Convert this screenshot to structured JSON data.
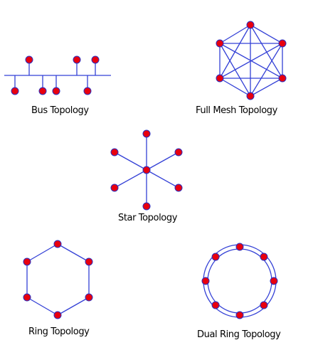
{
  "colors": {
    "line": "#3340d6",
    "node_fill": "#e8000e",
    "node_stroke": "#2b2fc0",
    "text": "#000000"
  },
  "labels": {
    "bus": "Bus Topology",
    "mesh": "Full Mesh Topology",
    "star": "Star Topology",
    "ring": "Ring Topology",
    "dual_ring": "Dual Ring Topology"
  }
}
